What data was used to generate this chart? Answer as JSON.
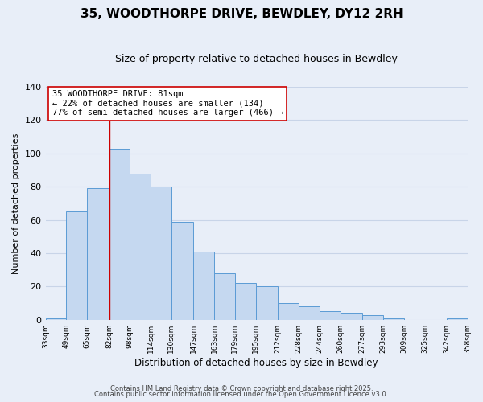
{
  "title": "35, WOODTHORPE DRIVE, BEWDLEY, DY12 2RH",
  "subtitle": "Size of property relative to detached houses in Bewdley",
  "xlabel": "Distribution of detached houses by size in Bewdley",
  "ylabel": "Number of detached properties",
  "bar_left_edges": [
    33,
    49,
    65,
    82,
    98,
    114,
    130,
    147,
    163,
    179,
    195,
    212,
    228,
    244,
    260,
    277,
    293,
    309,
    325,
    342
  ],
  "bar_widths": [
    16,
    16,
    17,
    16,
    16,
    16,
    17,
    16,
    16,
    16,
    17,
    16,
    16,
    16,
    17,
    16,
    16,
    16,
    17,
    16
  ],
  "bar_heights": [
    1,
    65,
    79,
    103,
    88,
    80,
    59,
    41,
    28,
    22,
    20,
    10,
    8,
    5,
    4,
    3,
    1,
    0,
    0,
    1
  ],
  "tick_labels": [
    "33sqm",
    "49sqm",
    "65sqm",
    "82sqm",
    "98sqm",
    "114sqm",
    "130sqm",
    "147sqm",
    "163sqm",
    "179sqm",
    "195sqm",
    "212sqm",
    "228sqm",
    "244sqm",
    "260sqm",
    "277sqm",
    "293sqm",
    "309sqm",
    "325sqm",
    "342sqm",
    "358sqm"
  ],
  "tick_positions": [
    33,
    49,
    65,
    82,
    98,
    114,
    130,
    147,
    163,
    179,
    195,
    212,
    228,
    244,
    260,
    277,
    293,
    309,
    325,
    342,
    358
  ],
  "bar_color": "#c5d8f0",
  "bar_edge_color": "#5b9bd5",
  "background_color": "#e8eef8",
  "grid_color": "#c8d4e8",
  "property_line_x": 82,
  "property_line_color": "#cc0000",
  "annotation_line1": "35 WOODTHORPE DRIVE: 81sqm",
  "annotation_line2": "← 22% of detached houses are smaller (134)",
  "annotation_line3": "77% of semi-detached houses are larger (466) →",
  "annotation_box_color": "#ffffff",
  "annotation_box_edge": "#cc0000",
  "ylim": [
    0,
    140
  ],
  "yticks": [
    0,
    20,
    40,
    60,
    80,
    100,
    120,
    140
  ],
  "footer1": "Contains HM Land Registry data © Crown copyright and database right 2025.",
  "footer2": "Contains public sector information licensed under the Open Government Licence v3.0."
}
